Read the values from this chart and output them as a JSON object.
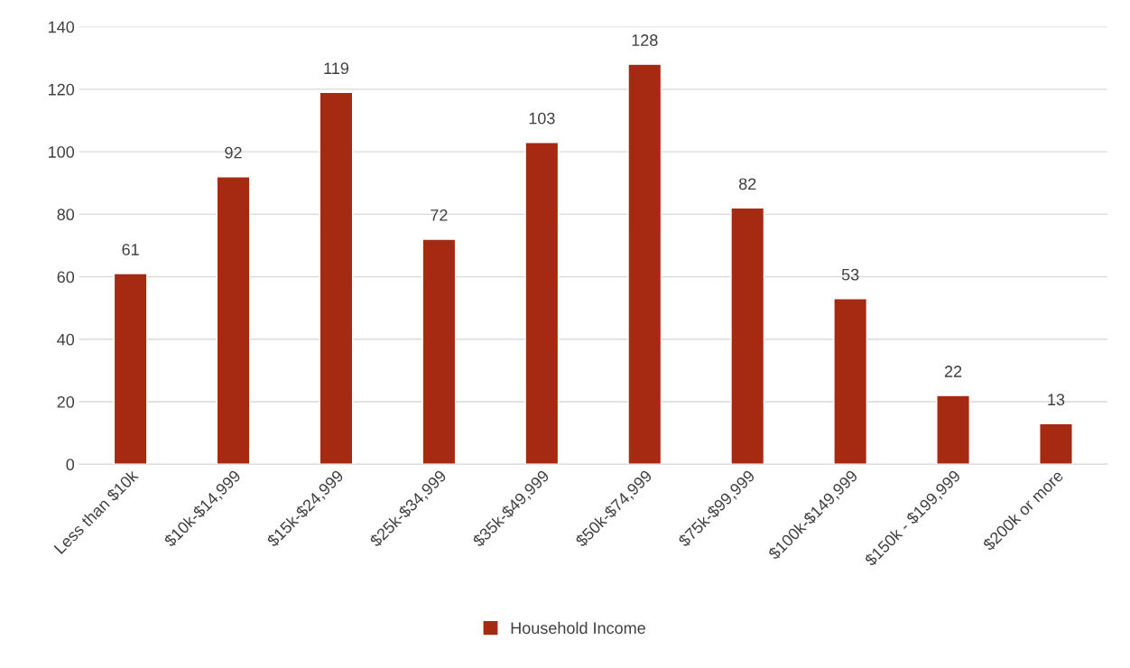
{
  "chart_data": {
    "type": "bar",
    "categories": [
      "Less than $10k",
      "$10k-$14,999",
      "$15k-$24,999",
      "$25k-$34,999",
      "$35k-$49,999",
      "$50k-$74,999",
      "$75k-$99,999",
      "$100k-$149,999",
      "$150k - $199,999",
      "$200k or more"
    ],
    "series": [
      {
        "name": "Household Income",
        "color": "#a52a11",
        "values": [
          61,
          92,
          119,
          72,
          103,
          128,
          82,
          53,
          22,
          13
        ]
      }
    ],
    "ylim": [
      0,
      140
    ],
    "yticks": [
      0,
      20,
      40,
      60,
      80,
      100,
      120,
      140
    ],
    "grid": "y",
    "legend": "bottom",
    "data_labels": true
  }
}
